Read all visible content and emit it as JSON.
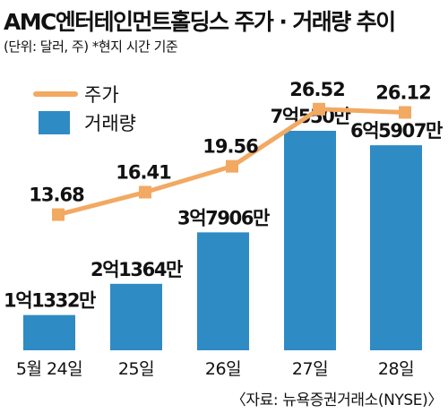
{
  "chart_data": {
    "type": "bar+line",
    "title": "AMC엔터테인먼트홀딩스 주가 · 거래량 추이",
    "subtitle": "(단위: 달러, 주) *현지 시간 기준",
    "source": "〈자료: 뉴욕증권거래소(NYSE)〉",
    "categories": [
      "5월 24일",
      "25일",
      "26일",
      "27일",
      "28일"
    ],
    "series": [
      {
        "name": "주가",
        "kind": "line",
        "values": [
          13.68,
          16.41,
          19.56,
          26.52,
          26.12
        ],
        "labels": [
          "13.68",
          "16.41",
          "19.56",
          "26.52",
          "26.12"
        ]
      },
      {
        "name": "거래량",
        "kind": "bar",
        "values": [
          113320000,
          213640000,
          379060000,
          705500000,
          659070000
        ],
        "labels": [
          "1억1332만",
          "2억1364만",
          "3억7906만",
          "7억550만",
          "6억5907만"
        ]
      }
    ],
    "legend_position": "top-left",
    "grid": false
  },
  "colors": {
    "bar": "#2f8bc4",
    "line": "#f2a962",
    "text": "#111111"
  }
}
